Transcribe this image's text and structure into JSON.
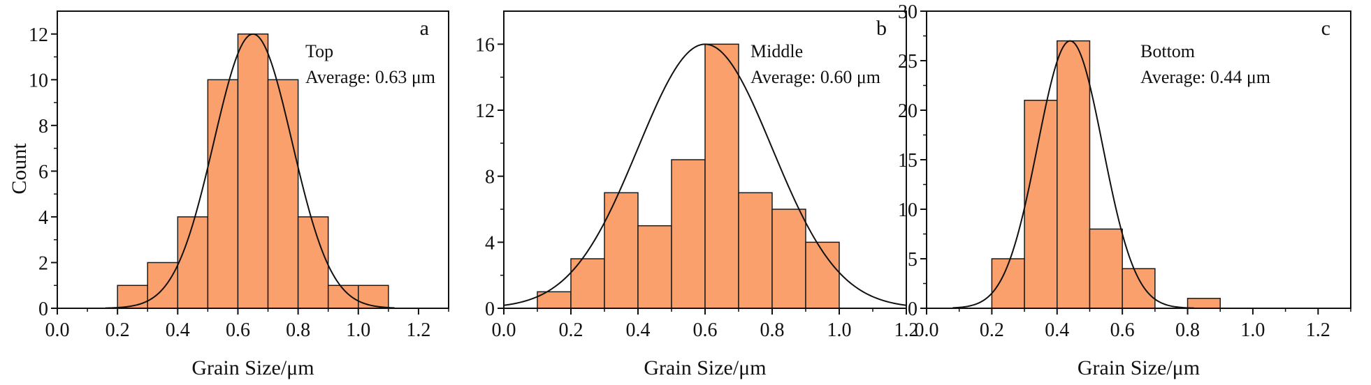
{
  "colors": {
    "bar_fill": "#f9a06c",
    "bar_stroke": "#1a1a1a",
    "curve": "#111111",
    "axis": "#111111"
  },
  "chart_data": [
    {
      "type": "bar",
      "panel": "a",
      "xlabel": "Grain Size/μm",
      "ylabel": "Count",
      "xlim": [
        0.0,
        1.3
      ],
      "ylim": [
        0,
        13.0
      ],
      "xticks": [
        "0.0",
        "0.2",
        "0.4",
        "0.6",
        "0.8",
        "1.0",
        "1.2"
      ],
      "yticks": [
        "0",
        "2",
        "4",
        "6",
        "8",
        "10",
        "12"
      ],
      "bin_width": 0.1,
      "bin_starts": [
        0.2,
        0.3,
        0.4,
        0.5,
        0.6,
        0.7,
        0.8,
        0.9,
        1.0
      ],
      "values": [
        1,
        2,
        4,
        10,
        12,
        10,
        4,
        1,
        1
      ],
      "fit_curve": {
        "type": "gaussian",
        "peak_x": 0.65,
        "peak_y": 12.0,
        "sigma": 0.13,
        "x_range": [
          0.16,
          1.12
        ]
      },
      "annotations": {
        "label": "Top",
        "average": "Average: 0.63 μm"
      },
      "grid": false,
      "legend": "none"
    },
    {
      "type": "bar",
      "panel": "b",
      "xlabel": "Grain Size/μm",
      "ylabel": "",
      "xlim": [
        0.0,
        1.2
      ],
      "ylim": [
        0,
        18.0
      ],
      "xticks": [
        "0.0",
        "0.2",
        "0.4",
        "0.6",
        "0.8",
        "1.0",
        "1.2"
      ],
      "yticks": [
        "0",
        "4",
        "8",
        "12",
        "16"
      ],
      "bin_width": 0.1,
      "bin_starts": [
        0.1,
        0.2,
        0.3,
        0.4,
        0.5,
        0.6,
        0.7,
        0.8,
        0.9
      ],
      "values": [
        1,
        3,
        7,
        5,
        9,
        16,
        7,
        6,
        4
      ],
      "fit_curve": {
        "type": "gaussian",
        "peak_x": 0.6,
        "peak_y": 16.0,
        "sigma": 0.2,
        "x_range": [
          0.0,
          1.2
        ]
      },
      "annotations": {
        "label": "Middle",
        "average": "Average: 0.60 μm"
      },
      "grid": false,
      "legend": "none"
    },
    {
      "type": "bar",
      "panel": "c",
      "xlabel": "Grain Size/μm",
      "ylabel": "",
      "xlim": [
        0.0,
        1.3
      ],
      "ylim": [
        0,
        30
      ],
      "xticks": [
        "0.0",
        "0.2",
        "0.4",
        "0.6",
        "0.8",
        "1.0",
        "1.2"
      ],
      "yticks": [
        "0",
        "5",
        "10",
        "15",
        "20",
        "25",
        "30"
      ],
      "bin_width": 0.1,
      "bin_starts": [
        0.2,
        0.3,
        0.4,
        0.5,
        0.6,
        0.8
      ],
      "values": [
        5,
        21,
        27,
        8,
        4,
        1
      ],
      "fit_curve": {
        "type": "gaussian",
        "peak_x": 0.44,
        "peak_y": 27.0,
        "sigma": 0.1,
        "x_range": [
          0.08,
          0.82
        ]
      },
      "annotations": {
        "label": "Bottom",
        "average": "Average: 0.44 μm"
      },
      "grid": false,
      "legend": "none"
    }
  ]
}
